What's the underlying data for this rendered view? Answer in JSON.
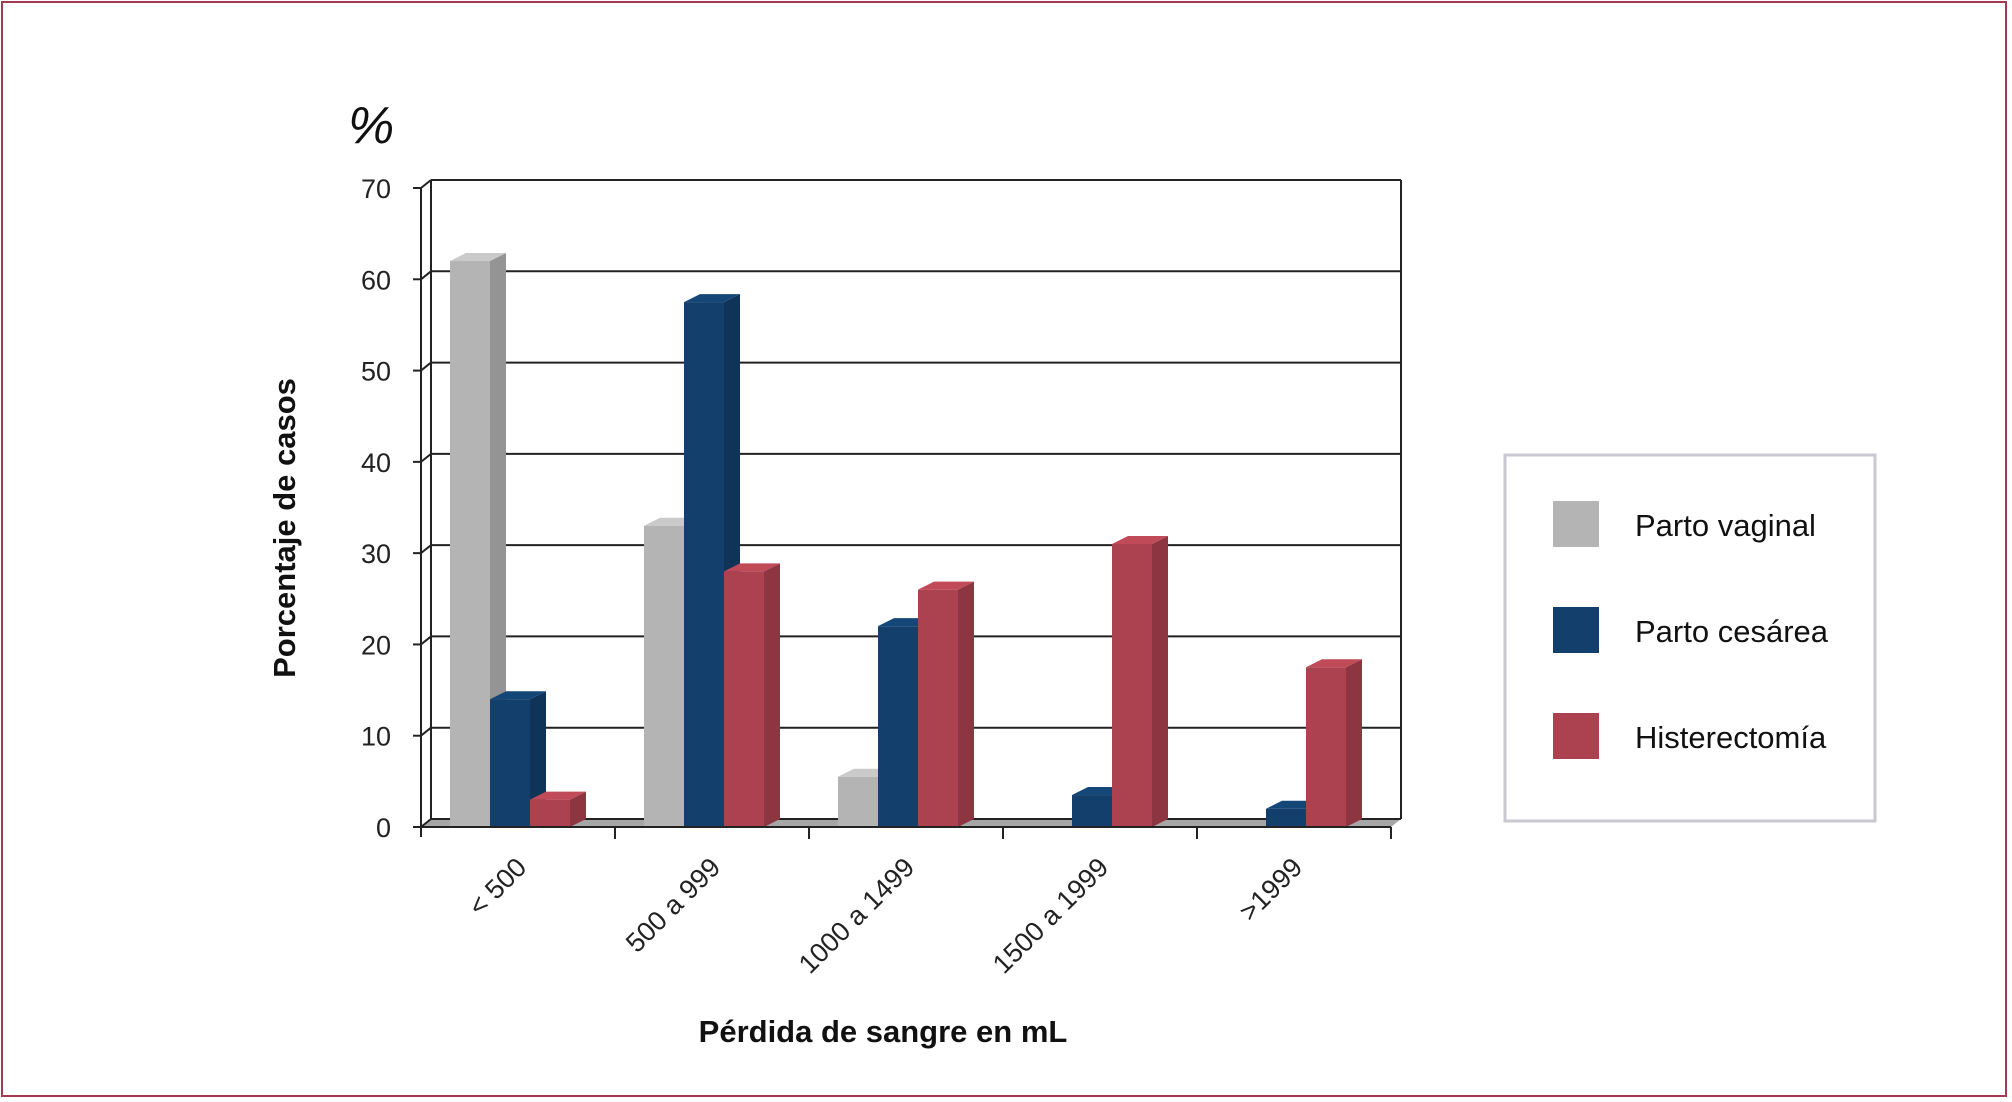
{
  "chart_data": {
    "type": "bar",
    "title": "",
    "unit_label": "%",
    "xlabel": "Pérdida de sangre en mL",
    "ylabel": "Porcentaje de casos",
    "ylim": [
      0,
      70
    ],
    "yticks": [
      0,
      10,
      20,
      30,
      40,
      50,
      60,
      70
    ],
    "grid": true,
    "three_d": true,
    "legend_position": "right",
    "categories": [
      "< 500",
      "500 a 999",
      "1000 a 1499",
      "1500 a 1999",
      ">1999"
    ],
    "series": [
      {
        "name": "Parto vaginal",
        "color": "#b4b4b4",
        "values": [
          62,
          33,
          5.5,
          0,
          0
        ]
      },
      {
        "name": "Parto cesárea",
        "color": "#123f6b",
        "values": [
          14,
          57.5,
          22,
          3.5,
          2
        ]
      },
      {
        "name": "Histerectomía",
        "color": "#ac424f",
        "values": [
          3,
          28,
          26,
          31,
          17.5
        ]
      }
    ]
  }
}
